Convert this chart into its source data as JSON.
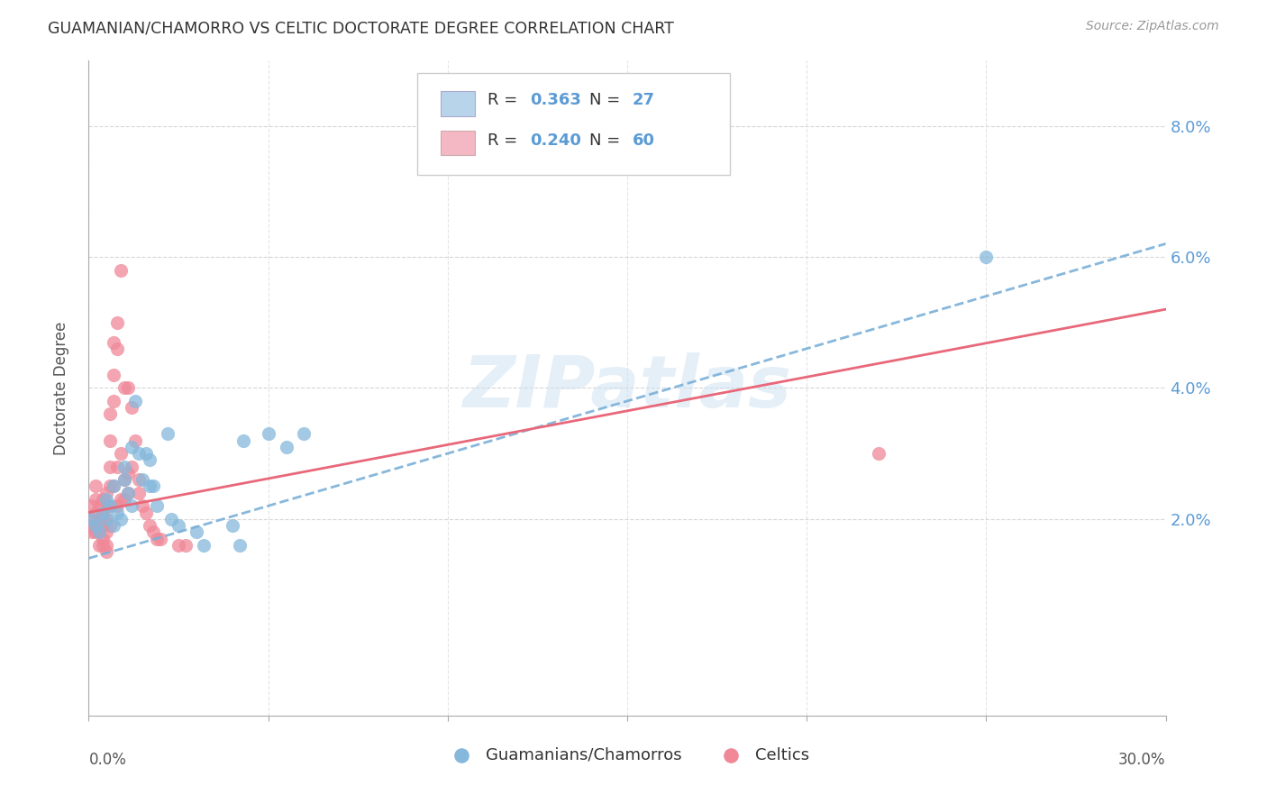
{
  "title": "GUAMANIAN/CHAMORRO VS CELTIC DOCTORATE DEGREE CORRELATION CHART",
  "source": "Source: ZipAtlas.com",
  "ylabel": "Doctorate Degree",
  "ytick_labels": [
    "2.0%",
    "4.0%",
    "6.0%",
    "8.0%"
  ],
  "ytick_values": [
    0.02,
    0.04,
    0.06,
    0.08
  ],
  "xlim": [
    0.0,
    0.3
  ],
  "ylim": [
    -0.01,
    0.09
  ],
  "watermark": "ZIPatlas",
  "blue_scatter_color": "#85b8db",
  "pink_scatter_color": "#f08898",
  "trendline_blue_color": "#7ab0d8",
  "trendline_pink_color": "#e8687a",
  "legend_blue_fill": "#b8d4ea",
  "legend_pink_fill": "#f4b8c4",
  "guamanian_trend_x": [
    0.0,
    0.3
  ],
  "guamanian_trend_y": [
    0.014,
    0.062
  ],
  "celtic_trend_x": [
    0.0,
    0.3
  ],
  "celtic_trend_y": [
    0.021,
    0.052
  ],
  "guamanian_points": [
    [
      0.001,
      0.02
    ],
    [
      0.002,
      0.019
    ],
    [
      0.003,
      0.018
    ],
    [
      0.004,
      0.021
    ],
    [
      0.005,
      0.02
    ],
    [
      0.005,
      0.023
    ],
    [
      0.006,
      0.022
    ],
    [
      0.007,
      0.019
    ],
    [
      0.007,
      0.025
    ],
    [
      0.008,
      0.021
    ],
    [
      0.009,
      0.02
    ],
    [
      0.01,
      0.026
    ],
    [
      0.01,
      0.028
    ],
    [
      0.011,
      0.024
    ],
    [
      0.012,
      0.031
    ],
    [
      0.012,
      0.022
    ],
    [
      0.013,
      0.038
    ],
    [
      0.014,
      0.03
    ],
    [
      0.015,
      0.026
    ],
    [
      0.016,
      0.03
    ],
    [
      0.017,
      0.029
    ],
    [
      0.017,
      0.025
    ],
    [
      0.018,
      0.025
    ],
    [
      0.019,
      0.022
    ],
    [
      0.022,
      0.033
    ],
    [
      0.023,
      0.02
    ],
    [
      0.025,
      0.019
    ],
    [
      0.03,
      0.018
    ],
    [
      0.032,
      0.016
    ],
    [
      0.04,
      0.019
    ],
    [
      0.042,
      0.016
    ],
    [
      0.043,
      0.032
    ],
    [
      0.05,
      0.033
    ],
    [
      0.055,
      0.031
    ],
    [
      0.06,
      0.033
    ],
    [
      0.25,
      0.06
    ]
  ],
  "celtic_points": [
    [
      0.001,
      0.022
    ],
    [
      0.001,
      0.02
    ],
    [
      0.001,
      0.019
    ],
    [
      0.001,
      0.018
    ],
    [
      0.002,
      0.025
    ],
    [
      0.002,
      0.023
    ],
    [
      0.002,
      0.021
    ],
    [
      0.002,
      0.018
    ],
    [
      0.003,
      0.022
    ],
    [
      0.003,
      0.02
    ],
    [
      0.003,
      0.018
    ],
    [
      0.003,
      0.016
    ],
    [
      0.004,
      0.023
    ],
    [
      0.004,
      0.021
    ],
    [
      0.004,
      0.019
    ],
    [
      0.004,
      0.017
    ],
    [
      0.004,
      0.016
    ],
    [
      0.005,
      0.024
    ],
    [
      0.005,
      0.022
    ],
    [
      0.005,
      0.02
    ],
    [
      0.005,
      0.018
    ],
    [
      0.005,
      0.016
    ],
    [
      0.005,
      0.015
    ],
    [
      0.006,
      0.036
    ],
    [
      0.006,
      0.032
    ],
    [
      0.006,
      0.028
    ],
    [
      0.006,
      0.025
    ],
    [
      0.006,
      0.022
    ],
    [
      0.006,
      0.019
    ],
    [
      0.007,
      0.047
    ],
    [
      0.007,
      0.042
    ],
    [
      0.007,
      0.038
    ],
    [
      0.007,
      0.025
    ],
    [
      0.008,
      0.05
    ],
    [
      0.008,
      0.046
    ],
    [
      0.008,
      0.028
    ],
    [
      0.008,
      0.022
    ],
    [
      0.009,
      0.058
    ],
    [
      0.009,
      0.03
    ],
    [
      0.009,
      0.023
    ],
    [
      0.01,
      0.04
    ],
    [
      0.01,
      0.026
    ],
    [
      0.01,
      0.023
    ],
    [
      0.011,
      0.04
    ],
    [
      0.011,
      0.027
    ],
    [
      0.011,
      0.024
    ],
    [
      0.012,
      0.037
    ],
    [
      0.012,
      0.028
    ],
    [
      0.013,
      0.032
    ],
    [
      0.014,
      0.026
    ],
    [
      0.014,
      0.024
    ],
    [
      0.015,
      0.022
    ],
    [
      0.016,
      0.021
    ],
    [
      0.017,
      0.019
    ],
    [
      0.018,
      0.018
    ],
    [
      0.019,
      0.017
    ],
    [
      0.02,
      0.017
    ],
    [
      0.025,
      0.016
    ],
    [
      0.027,
      0.016
    ],
    [
      0.22,
      0.03
    ]
  ],
  "bg_color": "#ffffff",
  "grid_color": "#cccccc"
}
